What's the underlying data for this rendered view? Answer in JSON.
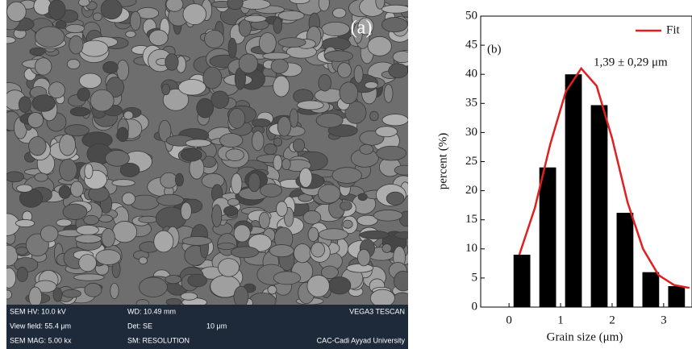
{
  "sem_panel": {
    "label": "(a)",
    "info": [
      [
        "SEM HV: 10.0 kV",
        "WD: 10.49 mm",
        "VEGA3 TESCAN"
      ],
      [
        "View field: 55.4 μm",
        "Det: SE",
        "10 μm"
      ],
      [
        "SEM MAG: 5.00 kx",
        "SM: RESOLUTION",
        "CAC-Cadi Ayyad University"
      ]
    ]
  },
  "chart_data": {
    "type": "histogram",
    "label": "(b)",
    "x_label": "Grain size (μm)",
    "y_label": "percent (%)",
    "annotation": "1,39 ± 0,29 μm",
    "bins": [
      0,
      0.5,
      1,
      1.5,
      2,
      2.5,
      3,
      3.5
    ],
    "values": [
      9,
      24,
      40,
      34.7,
      16.2,
      6,
      3.6
    ],
    "color": "#000000",
    "fit": {
      "name": "Fit",
      "color": "#e02020",
      "x": [
        0.2,
        0.5,
        0.8,
        1.1,
        1.4,
        1.7,
        2.0,
        2.3,
        2.6,
        2.9,
        3.2,
        3.5
      ],
      "values": [
        9,
        17,
        28,
        37,
        41,
        38,
        29,
        18,
        10,
        5.5,
        3.8,
        3.3
      ]
    },
    "xlim": [
      -0.55,
      3.55
    ],
    "ylim": [
      0,
      50
    ],
    "xticks": [
      0,
      1,
      2,
      3
    ],
    "yticks": [
      0,
      5,
      10,
      15,
      20,
      25,
      30,
      35,
      40,
      45,
      50
    ],
    "legend": "upper right"
  }
}
